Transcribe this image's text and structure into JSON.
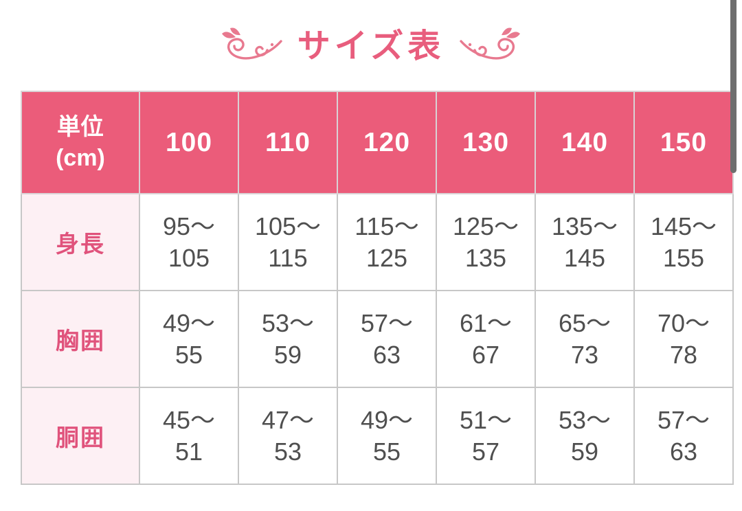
{
  "page": {
    "title": "サイズ表"
  },
  "table": {
    "unit_header_lines": [
      "単位",
      "(cm)"
    ],
    "size_headers": [
      "100",
      "110",
      "120",
      "130",
      "140",
      "150"
    ],
    "rows": [
      {
        "label": "身長",
        "values": [
          [
            "95〜",
            "105"
          ],
          [
            "105〜",
            "115"
          ],
          [
            "115〜",
            "125"
          ],
          [
            "125〜",
            "135"
          ],
          [
            "135〜",
            "145"
          ],
          [
            "145〜",
            "155"
          ]
        ]
      },
      {
        "label": "胸囲",
        "values": [
          [
            "49〜",
            "55"
          ],
          [
            "53〜",
            "59"
          ],
          [
            "57〜",
            "63"
          ],
          [
            "61〜",
            "67"
          ],
          [
            "65〜",
            "73"
          ],
          [
            "70〜",
            "78"
          ]
        ]
      },
      {
        "label": "胴囲",
        "values": [
          [
            "45〜",
            "51"
          ],
          [
            "47〜",
            "53"
          ],
          [
            "49〜",
            "55"
          ],
          [
            "51〜",
            "57"
          ],
          [
            "53〜",
            "59"
          ],
          [
            "57〜",
            "63"
          ]
        ]
      }
    ]
  },
  "colors": {
    "header_bg": "#eb5c7a",
    "title_pink": "#e85d7d",
    "label_bg": "#fdf0f4",
    "label_text": "#e0537c",
    "value_text": "#4f4f4f",
    "grid_line": "#c7c7c7",
    "scrollbar": "#6e6e6e"
  }
}
